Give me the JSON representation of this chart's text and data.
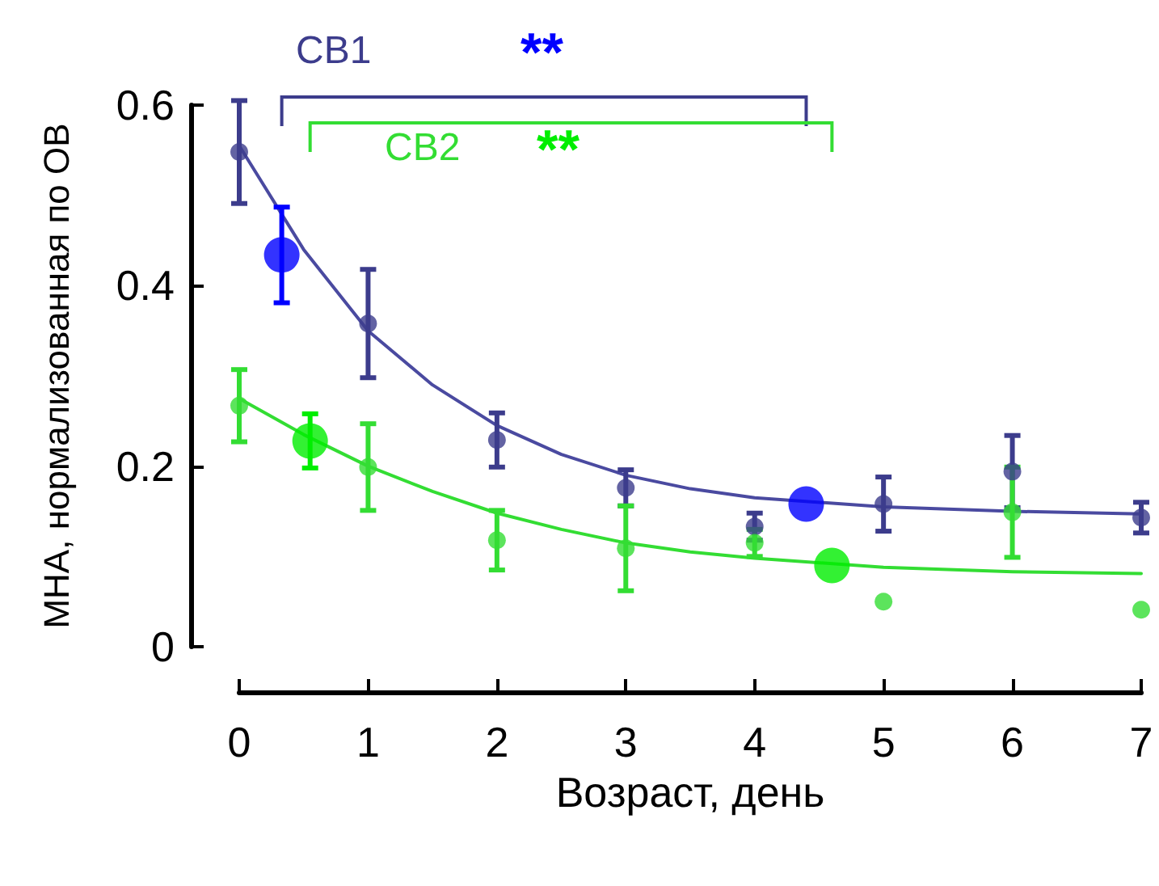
{
  "chart_data": {
    "type": "scatter",
    "xlabel": "Возраст, день",
    "ylabel": "МНА, нормализованная по ОВ",
    "xlim": [
      0,
      7
    ],
    "xticks": [
      0,
      1,
      2,
      3,
      4,
      5,
      6,
      7
    ],
    "ylim": [
      0,
      0.6
    ],
    "yticks": [
      0,
      0.2,
      0.4,
      0.6
    ],
    "grid": false,
    "marker": "circle",
    "annotations": [
      "СВ1",
      "**",
      "СВ2",
      "**"
    ],
    "series": [
      {
        "color": "#3c3c8c",
        "x": [
          0,
          1,
          2,
          3,
          4,
          5,
          6,
          7
        ],
        "values": [
          0.548,
          0.358,
          0.229,
          0.176,
          0.133,
          0.158,
          0.194,
          0.143
        ],
        "errors": [
          0.057,
          0.06,
          0.03,
          0.02,
          0.015,
          0.03,
          0.04,
          0.017
        ]
      },
      {
        "color": "#0000ff",
        "x": [
          0.33,
          4.4
        ],
        "values": [
          0.434,
          0.158
        ],
        "errors": [
          0.053,
          null
        ]
      },
      {
        "type": "line",
        "color": "#4a4aa0",
        "marker": "none",
        "x": [
          0,
          0.5,
          1,
          1.5,
          2,
          2.5,
          3,
          3.5,
          4,
          5,
          6,
          7
        ],
        "values": [
          0.555,
          0.44,
          0.35,
          0.29,
          0.245,
          0.213,
          0.19,
          0.175,
          0.165,
          0.155,
          0.15,
          0.147
        ]
      },
      {
        "color": "#33dd33",
        "x": [
          0,
          1,
          2,
          3,
          4,
          5,
          6,
          7
        ],
        "values": [
          0.267,
          0.199,
          0.118,
          0.109,
          0.115,
          0.05,
          0.149,
          0.041
        ],
        "errors": [
          0.04,
          0.048,
          0.033,
          0.047,
          0.015,
          null,
          0.05,
          null
        ]
      },
      {
        "color": "#00ee00",
        "x": [
          0.55,
          4.6
        ],
        "values": [
          0.228,
          0.09
        ],
        "errors": [
          0.03,
          null
        ]
      },
      {
        "type": "line",
        "color": "#33dd33",
        "marker": "none",
        "x": [
          0,
          0.5,
          1,
          1.5,
          2,
          2.5,
          3,
          3.5,
          4,
          5,
          6,
          7
        ],
        "values": [
          0.275,
          0.235,
          0.2,
          0.172,
          0.148,
          0.13,
          0.115,
          0.105,
          0.098,
          0.088,
          0.083,
          0.081
        ]
      }
    ]
  }
}
